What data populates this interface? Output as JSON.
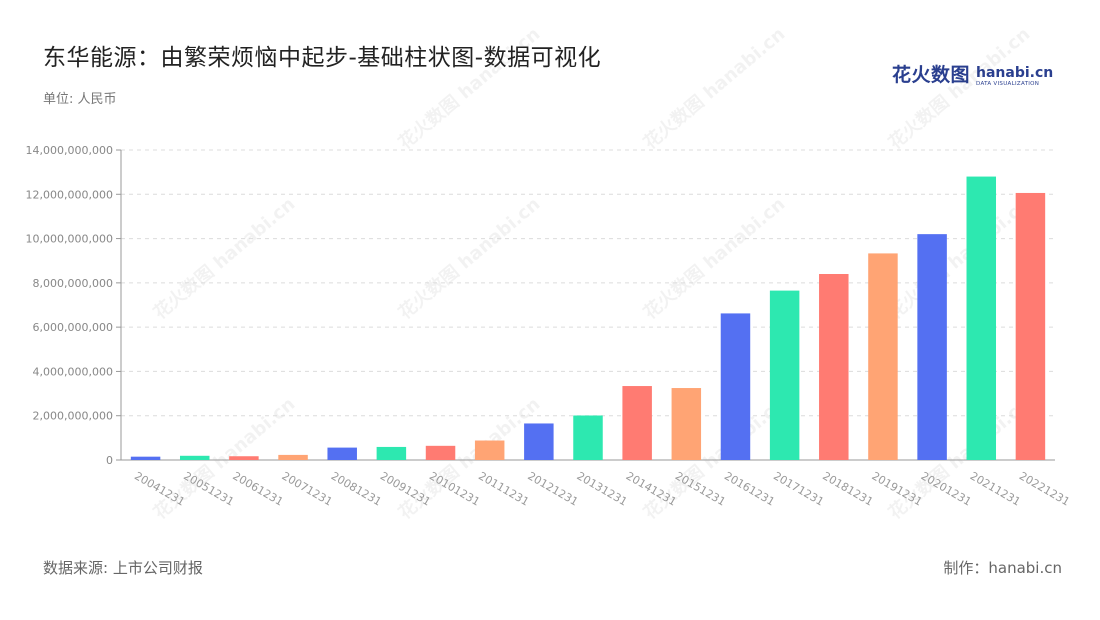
{
  "title": "东华能源：由繁荣烦恼中起步-基础柱状图-数据可视化",
  "unit_label": "单位: 人民币",
  "source_label": "数据来源: 上市公司财报",
  "credit_label": "制作：hanabi.cn",
  "logo": {
    "cn": "花火数图",
    "en": "hanabi.cn",
    "sub": "DATA VISUALIZATION"
  },
  "watermark_text": "花火数图 hanabi.cn",
  "colors": [
    "#5470f2",
    "#2de8b0",
    "#ff7b72",
    "#ffa474"
  ],
  "chart_data": {
    "type": "bar",
    "title": "",
    "xlabel": "",
    "ylabel": "",
    "categories": [
      "20041231",
      "20051231",
      "20061231",
      "20071231",
      "20081231",
      "20091231",
      "20101231",
      "20111231",
      "20121231",
      "20131231",
      "20141231",
      "20151231",
      "20161231",
      "20171231",
      "20181231",
      "20191231",
      "20201231",
      "20211231",
      "20221231"
    ],
    "values": [
      150000000,
      190000000,
      170000000,
      230000000,
      560000000,
      590000000,
      640000000,
      880000000,
      1650000000,
      2010000000,
      3340000000,
      3250000000,
      6620000000,
      7650000000,
      8400000000,
      9330000000,
      10200000000,
      12800000000,
      12060000000
    ],
    "ylim": [
      0,
      14000000000
    ],
    "yticks": [
      "0",
      "2,000,000,000",
      "4,000,000,000",
      "6,000,000,000",
      "8,000,000,000",
      "10,000,000,000",
      "12,000,000,000",
      "14,000,000,000"
    ],
    "ytick_values": [
      0,
      2000000000,
      4000000000,
      6000000000,
      8000000000,
      10000000000,
      12000000000,
      14000000000
    ],
    "grid": true,
    "legend": "none"
  }
}
